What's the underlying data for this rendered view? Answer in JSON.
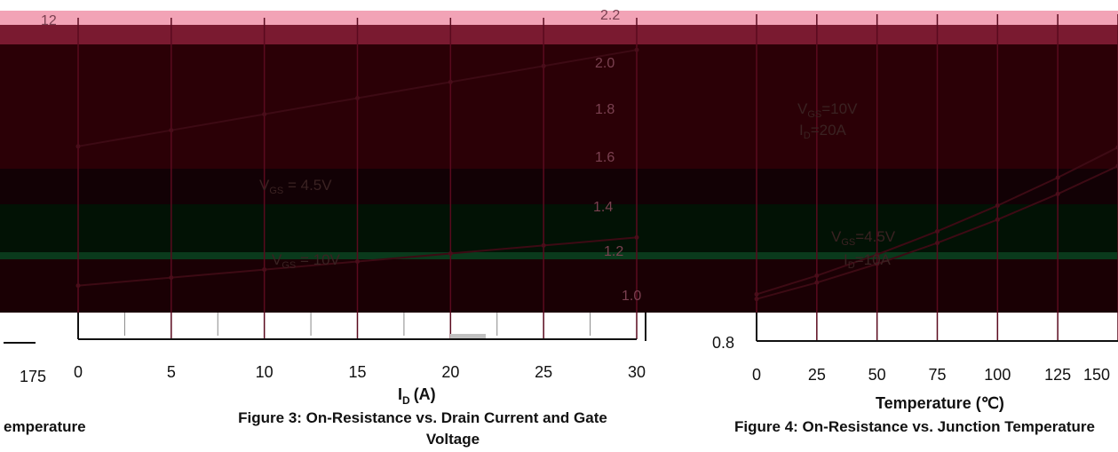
{
  "chart_data": [
    {
      "type": "line",
      "title": "Figure 3: On-Resistance vs. Drain Current and Gate Voltage",
      "xlabel": "I",
      "xlabel_sub": "D",
      "xlabel_unit": "(A)",
      "x_ticks": [
        "0",
        "5",
        "10",
        "15",
        "20",
        "25",
        "30"
      ],
      "xlim": [
        0,
        30
      ],
      "annotations": [
        "V",
        "GS",
        " = 4.5V",
        "V",
        "GS",
        " = 10V"
      ],
      "series": [
        {
          "x": [
            0,
            5,
            10,
            15,
            20,
            25,
            30
          ],
          "y": [
            10.6,
            10.9,
            11.2,
            11.5,
            11.8,
            12.1,
            12.4
          ]
        },
        {
          "x": [
            0,
            5,
            10,
            15,
            20,
            25,
            30
          ],
          "y": [
            8.0,
            8.15,
            8.3,
            8.45,
            8.6,
            8.75,
            8.9
          ]
        }
      ]
    },
    {
      "type": "line",
      "title": "Figure 4: On-Resistance vs. Junction Temperature",
      "xlabel": "Temperature (",
      "xlabel_unit": "℃)",
      "x_ticks": [
        "0",
        "25",
        "50",
        "75",
        "100",
        "125",
        "150"
      ],
      "xlim": [
        0,
        150
      ],
      "y_ticks": [
        "0.8",
        "1.0",
        "1.2",
        "1.4",
        "1.6",
        "1.8",
        "2.0",
        "2.2"
      ],
      "ylim": [
        0.8,
        2.2
      ],
      "annotations": [
        "V",
        "GS",
        "=10V",
        "I",
        "D",
        "=20A",
        "V",
        "GS",
        "=4.5V",
        "I",
        "D",
        "=10A"
      ],
      "series": [
        {
          "x": [
            0,
            25,
            50,
            75,
            100,
            125,
            150
          ],
          "y": [
            1.0,
            1.08,
            1.17,
            1.27,
            1.38,
            1.5,
            1.63
          ]
        },
        {
          "x": [
            0,
            25,
            50,
            75,
            100,
            125,
            150
          ],
          "y": [
            0.98,
            1.05,
            1.13,
            1.22,
            1.32,
            1.43,
            1.55
          ]
        }
      ]
    }
  ],
  "fragments": {
    "top_left_number": "12",
    "left_tick_175": "175",
    "left_caption_tail": "emperature",
    "top_mid_number": "2.2"
  },
  "colors": {
    "band_top": "#f2a3b6",
    "band_mid": "#7a1a30",
    "dark_body": "#2b0006",
    "green_body": "#021205",
    "grid": "#5a0a1e"
  }
}
